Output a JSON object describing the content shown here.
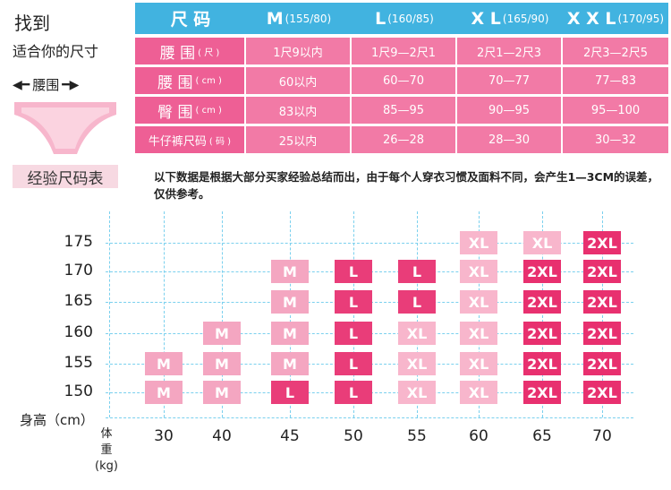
{
  "left_panel": {
    "title": "找到",
    "subtitle": "适合你的尺寸",
    "waist_label": "腰围",
    "chart_label": "经验尺码表"
  },
  "size_table": {
    "header": [
      {
        "label": "尺 码",
        "sub": ""
      },
      {
        "label": "M",
        "sub": "(155/80)"
      },
      {
        "label": "L",
        "sub": "(160/85)"
      },
      {
        "label": "X L",
        "sub": "(165/90)"
      },
      {
        "label": "X X L",
        "sub": "(170/95)"
      }
    ],
    "rows": [
      {
        "label": "腰 围",
        "unit": "( 尺 )",
        "values": [
          "1尺9以内",
          "1尺9—2尺1",
          "2尺1—2尺3",
          "2尺3—2尺5"
        ]
      },
      {
        "label": "腰 围",
        "unit": "( cm )",
        "values": [
          "60以内",
          "60—70",
          "70—77",
          "77—83"
        ]
      },
      {
        "label": "臀 围",
        "unit": "( cm )",
        "values": [
          "83以内",
          "85—95",
          "90—95",
          "95—100"
        ]
      },
      {
        "label": "牛仔裤尺码",
        "unit": "( 码 )",
        "values": [
          "25以内",
          "26—28",
          "28—30",
          "30—32"
        ]
      }
    ]
  },
  "note": "以下数据是根据大部分买家经验总结而出，由于每个人穿衣习惯及面料不同，会产生1—3CM的误差，仅供参考。",
  "chart_data": {
    "type": "table",
    "y_label": "身高（cm）",
    "x_label": [
      "体",
      "重",
      "(kg)"
    ],
    "heights": [
      175,
      170,
      165,
      160,
      155,
      150
    ],
    "weights": [
      30,
      40,
      45,
      50,
      55,
      60,
      65,
      70
    ],
    "cells": [
      {
        "h": 175,
        "w": 60,
        "size": "XL"
      },
      {
        "h": 175,
        "w": 65,
        "size": "XL"
      },
      {
        "h": 175,
        "w": 70,
        "size": "2XL"
      },
      {
        "h": 170,
        "w": 45,
        "size": "M"
      },
      {
        "h": 170,
        "w": 50,
        "size": "L"
      },
      {
        "h": 170,
        "w": 55,
        "size": "L"
      },
      {
        "h": 170,
        "w": 60,
        "size": "XL"
      },
      {
        "h": 170,
        "w": 65,
        "size": "2XL"
      },
      {
        "h": 170,
        "w": 70,
        "size": "2XL"
      },
      {
        "h": 165,
        "w": 45,
        "size": "M"
      },
      {
        "h": 165,
        "w": 50,
        "size": "L"
      },
      {
        "h": 165,
        "w": 55,
        "size": "L"
      },
      {
        "h": 165,
        "w": 60,
        "size": "XL"
      },
      {
        "h": 165,
        "w": 65,
        "size": "2XL"
      },
      {
        "h": 165,
        "w": 70,
        "size": "2XL"
      },
      {
        "h": 160,
        "w": 40,
        "size": "M"
      },
      {
        "h": 160,
        "w": 45,
        "size": "M"
      },
      {
        "h": 160,
        "w": 50,
        "size": "L"
      },
      {
        "h": 160,
        "w": 55,
        "size": "XL"
      },
      {
        "h": 160,
        "w": 60,
        "size": "XL"
      },
      {
        "h": 160,
        "w": 65,
        "size": "2XL"
      },
      {
        "h": 160,
        "w": 70,
        "size": "2XL"
      },
      {
        "h": 155,
        "w": 30,
        "size": "M"
      },
      {
        "h": 155,
        "w": 40,
        "size": "M"
      },
      {
        "h": 155,
        "w": 45,
        "size": "M"
      },
      {
        "h": 155,
        "w": 50,
        "size": "L"
      },
      {
        "h": 155,
        "w": 55,
        "size": "XL"
      },
      {
        "h": 155,
        "w": 60,
        "size": "XL"
      },
      {
        "h": 155,
        "w": 65,
        "size": "2XL"
      },
      {
        "h": 155,
        "w": 70,
        "size": "2XL"
      },
      {
        "h": 150,
        "w": 30,
        "size": "M"
      },
      {
        "h": 150,
        "w": 40,
        "size": "M"
      },
      {
        "h": 150,
        "w": 45,
        "size": "L"
      },
      {
        "h": 150,
        "w": 50,
        "size": "L"
      },
      {
        "h": 150,
        "w": 55,
        "size": "XL"
      },
      {
        "h": 150,
        "w": 60,
        "size": "XL"
      },
      {
        "h": 150,
        "w": 65,
        "size": "2XL"
      },
      {
        "h": 150,
        "w": 70,
        "size": "2XL"
      }
    ],
    "size_colors": {
      "M": "#f4a6c1",
      "L": "#e93d79",
      "XL": "#f8b6cc",
      "2XL": "#e8306f"
    }
  }
}
